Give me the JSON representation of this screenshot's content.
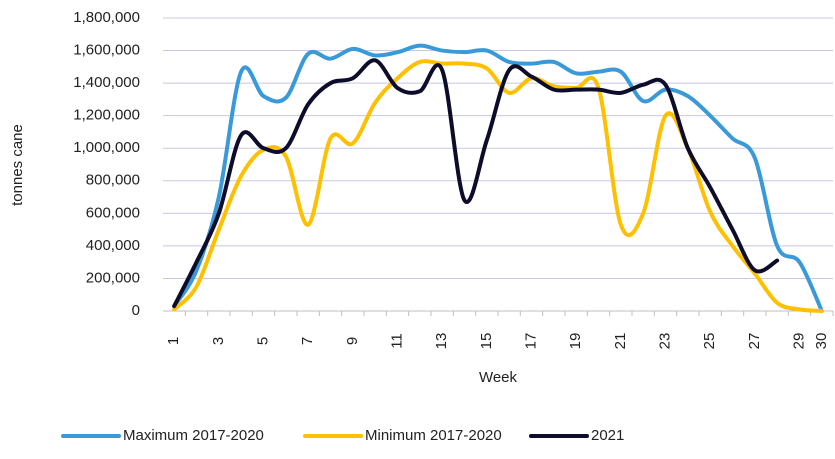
{
  "chart_data": {
    "type": "line",
    "x_label": "Week",
    "y_label": "tonnes cane",
    "categories": [
      "1",
      null,
      "3",
      null,
      "5",
      null,
      "7",
      null,
      "9",
      null,
      "11",
      null,
      "13",
      null,
      "15",
      null,
      "17",
      null,
      "19",
      null,
      "21",
      null,
      "23",
      null,
      "25",
      null,
      "27",
      null,
      "29",
      "30"
    ],
    "series": [
      {
        "name": "Maximum 2017-2020",
        "color": "#3a9ad9",
        "values": [
          30000,
          250000,
          700000,
          1470000,
          1320000,
          1310000,
          1580000,
          1550000,
          1610000,
          1570000,
          1590000,
          1630000,
          1600000,
          1590000,
          1600000,
          1530000,
          1520000,
          1530000,
          1460000,
          1470000,
          1470000,
          1290000,
          1360000,
          1320000,
          1200000,
          1060000,
          940000,
          400000,
          300000,
          0
        ]
      },
      {
        "name": "Minimum 2017-2020",
        "color": "#ffc000",
        "values": [
          10000,
          150000,
          500000,
          830000,
          990000,
          950000,
          530000,
          1060000,
          1030000,
          1280000,
          1430000,
          1530000,
          1520000,
          1520000,
          1490000,
          1340000,
          1430000,
          1380000,
          1370000,
          1370000,
          530000,
          600000,
          1200000,
          1000000,
          610000,
          400000,
          230000,
          50000,
          10000,
          0
        ]
      },
      {
        "name": "2021",
        "color": "#0d0d2b",
        "values": [
          30000,
          300000,
          600000,
          1080000,
          1000000,
          1000000,
          1270000,
          1400000,
          1430000,
          1540000,
          1370000,
          1350000,
          1480000,
          680000,
          1050000,
          1480000,
          1440000,
          1360000,
          1360000,
          1360000,
          1340000,
          1390000,
          1390000,
          1000000,
          760000,
          500000,
          250000,
          310000,
          null,
          null
        ]
      }
    ],
    "ylim": [
      0,
      1800000
    ],
    "yticks": [
      0,
      {
        "value": 200000,
        "label": "200,000"
      },
      {
        "value": 400000,
        "label": "400,000"
      },
      {
        "value": 600000,
        "label": "600,000"
      },
      {
        "value": 800000,
        "label": "800,000"
      },
      {
        "value": 1000000,
        "label": "1,000,000"
      },
      {
        "value": 1200000,
        "label": "1,200,000"
      },
      {
        "value": 1400000,
        "label": "1,400,000"
      },
      {
        "value": 1600000,
        "label": "1,600,000"
      },
      {
        "value": 1800000,
        "label": "1,800,000"
      }
    ],
    "grid": true,
    "legend": "bottom"
  }
}
